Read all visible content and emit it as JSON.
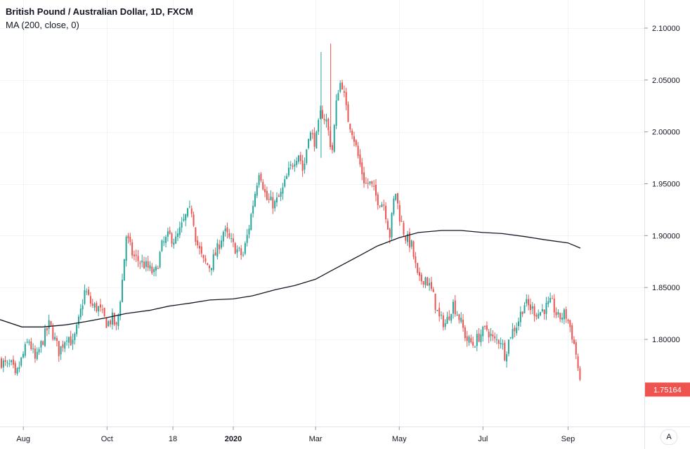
{
  "legend": {
    "title": "British Pound / Australian Dollar, 1D, FXCM",
    "indicator": "MA (200, close, 0)"
  },
  "price_scale_button": "A",
  "colors": {
    "up": "#26a69a",
    "down": "#ef5350",
    "ma": "#131722",
    "grid": "#f0f3fa",
    "axis_border": "#e0e3eb",
    "last_price_bg": "#ef5350"
  },
  "chart_data": {
    "type": "candlestick",
    "symbol": "GBPAUD",
    "interval": "1D",
    "ylim": [
      1.73,
      2.1195
    ],
    "y_ticks": [
      "1.80000",
      "1.85000",
      "1.90000",
      "1.95000",
      "2.00000",
      "2.05000",
      "2.10000"
    ],
    "x_ticks": [
      {
        "label": "Aug",
        "bold": false
      },
      {
        "label": "Oct",
        "bold": false
      },
      {
        "label": "18",
        "bold": false
      },
      {
        "label": "2020",
        "bold": true
      },
      {
        "label": "Mar",
        "bold": false
      },
      {
        "label": "May",
        "bold": false
      },
      {
        "label": "Jul",
        "bold": false
      },
      {
        "label": "Sep",
        "bold": false
      }
    ],
    "last_price": "1.75164",
    "close_path": [
      [
        "2019-07-15",
        1.78
      ],
      [
        "2019-07-20",
        1.774
      ],
      [
        "2019-07-24",
        1.775
      ],
      [
        "2019-07-26",
        1.762
      ],
      [
        "2019-07-31",
        1.782
      ],
      [
        "2019-08-05",
        1.8
      ],
      [
        "2019-08-10",
        1.778
      ],
      [
        "2019-08-13",
        1.792
      ],
      [
        "2019-08-20",
        1.815
      ],
      [
        "2019-08-27",
        1.788
      ],
      [
        "2019-09-02",
        1.805
      ],
      [
        "2019-09-06",
        1.795
      ],
      [
        "2019-09-10",
        1.815
      ],
      [
        "2019-09-15",
        1.848
      ],
      [
        "2019-09-20",
        1.832
      ],
      [
        "2019-09-25",
        1.83
      ],
      [
        "2019-10-01",
        1.815
      ],
      [
        "2019-10-05",
        1.82
      ],
      [
        "2019-10-08",
        1.81
      ],
      [
        "2019-10-12",
        1.855
      ],
      [
        "2019-10-15",
        1.9
      ],
      [
        "2019-10-20",
        1.88
      ],
      [
        "2019-10-25",
        1.875
      ],
      [
        "2019-10-30",
        1.87
      ],
      [
        "2019-11-05",
        1.862
      ],
      [
        "2019-11-10",
        1.89
      ],
      [
        "2019-11-15",
        1.9
      ],
      [
        "2019-11-20",
        1.895
      ],
      [
        "2019-11-28",
        1.92
      ],
      [
        "2019-12-02",
        1.925
      ],
      [
        "2019-12-05",
        1.895
      ],
      [
        "2019-12-10",
        1.875
      ],
      [
        "2019-12-15",
        1.87
      ],
      [
        "2019-12-20",
        1.885
      ],
      [
        "2019-12-25",
        1.905
      ],
      [
        "2020-01-01",
        1.89
      ],
      [
        "2020-01-08",
        1.88
      ],
      [
        "2020-01-12",
        1.905
      ],
      [
        "2020-01-16",
        1.935
      ],
      [
        "2020-01-20",
        1.965
      ],
      [
        "2020-01-25",
        1.935
      ],
      [
        "2020-01-31",
        1.93
      ],
      [
        "2020-02-05",
        1.94
      ],
      [
        "2020-02-10",
        1.96
      ],
      [
        "2020-02-15",
        1.975
      ],
      [
        "2020-02-18",
        1.98
      ],
      [
        "2020-02-21",
        1.96
      ],
      [
        "2020-02-25",
        2.0
      ],
      [
        "2020-03-01",
        1.99
      ],
      [
        "2020-03-05",
        2.02
      ],
      [
        "2020-03-09",
        2.01
      ],
      [
        "2020-03-13",
        1.98
      ],
      [
        "2020-03-17",
        2.04
      ],
      [
        "2020-03-20",
        2.05
      ],
      [
        "2020-03-24",
        2.015
      ],
      [
        "2020-03-28",
        2.0
      ],
      [
        "2020-04-02",
        1.97
      ],
      [
        "2020-04-06",
        1.95
      ],
      [
        "2020-04-10",
        1.95
      ],
      [
        "2020-04-15",
        1.935
      ],
      [
        "2020-04-20",
        1.93
      ],
      [
        "2020-04-24",
        1.9
      ],
      [
        "2020-04-28",
        1.945
      ],
      [
        "2020-05-01",
        1.92
      ],
      [
        "2020-05-05",
        1.9
      ],
      [
        "2020-05-10",
        1.89
      ],
      [
        "2020-05-15",
        1.855
      ],
      [
        "2020-05-20",
        1.86
      ],
      [
        "2020-05-25",
        1.845
      ],
      [
        "2020-05-30",
        1.82
      ],
      [
        "2020-06-04",
        1.815
      ],
      [
        "2020-06-09",
        1.835
      ],
      [
        "2020-06-14",
        1.82
      ],
      [
        "2020-06-19",
        1.8
      ],
      [
        "2020-06-24",
        1.795
      ],
      [
        "2020-06-29",
        1.805
      ],
      [
        "2020-07-04",
        1.81
      ],
      [
        "2020-07-09",
        1.798
      ],
      [
        "2020-07-14",
        1.8
      ],
      [
        "2020-07-17",
        1.785
      ],
      [
        "2020-07-21",
        1.805
      ],
      [
        "2020-07-26",
        1.815
      ],
      [
        "2020-07-31",
        1.835
      ],
      [
        "2020-08-05",
        1.83
      ],
      [
        "2020-08-10",
        1.825
      ],
      [
        "2020-08-15",
        1.83
      ],
      [
        "2020-08-20",
        1.835
      ],
      [
        "2020-08-25",
        1.82
      ],
      [
        "2020-08-30",
        1.825
      ],
      [
        "2020-09-03",
        1.81
      ],
      [
        "2020-09-07",
        1.785
      ],
      [
        "2020-09-09",
        1.765
      ],
      [
        "2020-09-10",
        1.7516
      ]
    ],
    "ma_path": [
      [
        "2019-07-15",
        1.819
      ],
      [
        "2019-07-31",
        1.812
      ],
      [
        "2019-08-15",
        1.812
      ],
      [
        "2019-09-01",
        1.814
      ],
      [
        "2019-09-15",
        1.817
      ],
      [
        "2019-10-01",
        1.821
      ],
      [
        "2019-10-15",
        1.825
      ],
      [
        "2019-11-01",
        1.828
      ],
      [
        "2019-11-15",
        1.832
      ],
      [
        "2019-12-01",
        1.835
      ],
      [
        "2019-12-15",
        1.838
      ],
      [
        "2020-01-01",
        1.839
      ],
      [
        "2020-01-15",
        1.842
      ],
      [
        "2020-02-01",
        1.848
      ],
      [
        "2020-02-15",
        1.852
      ],
      [
        "2020-03-01",
        1.858
      ],
      [
        "2020-03-15",
        1.868
      ],
      [
        "2020-04-01",
        1.88
      ],
      [
        "2020-04-15",
        1.89
      ],
      [
        "2020-05-01",
        1.898
      ],
      [
        "2020-05-15",
        1.903
      ],
      [
        "2020-06-01",
        1.905
      ],
      [
        "2020-06-15",
        1.905
      ],
      [
        "2020-07-01",
        1.903
      ],
      [
        "2020-07-15",
        1.902
      ],
      [
        "2020-08-01",
        1.899
      ],
      [
        "2020-08-15",
        1.896
      ],
      [
        "2020-09-01",
        1.893
      ],
      [
        "2020-09-10",
        1.888
      ]
    ]
  }
}
